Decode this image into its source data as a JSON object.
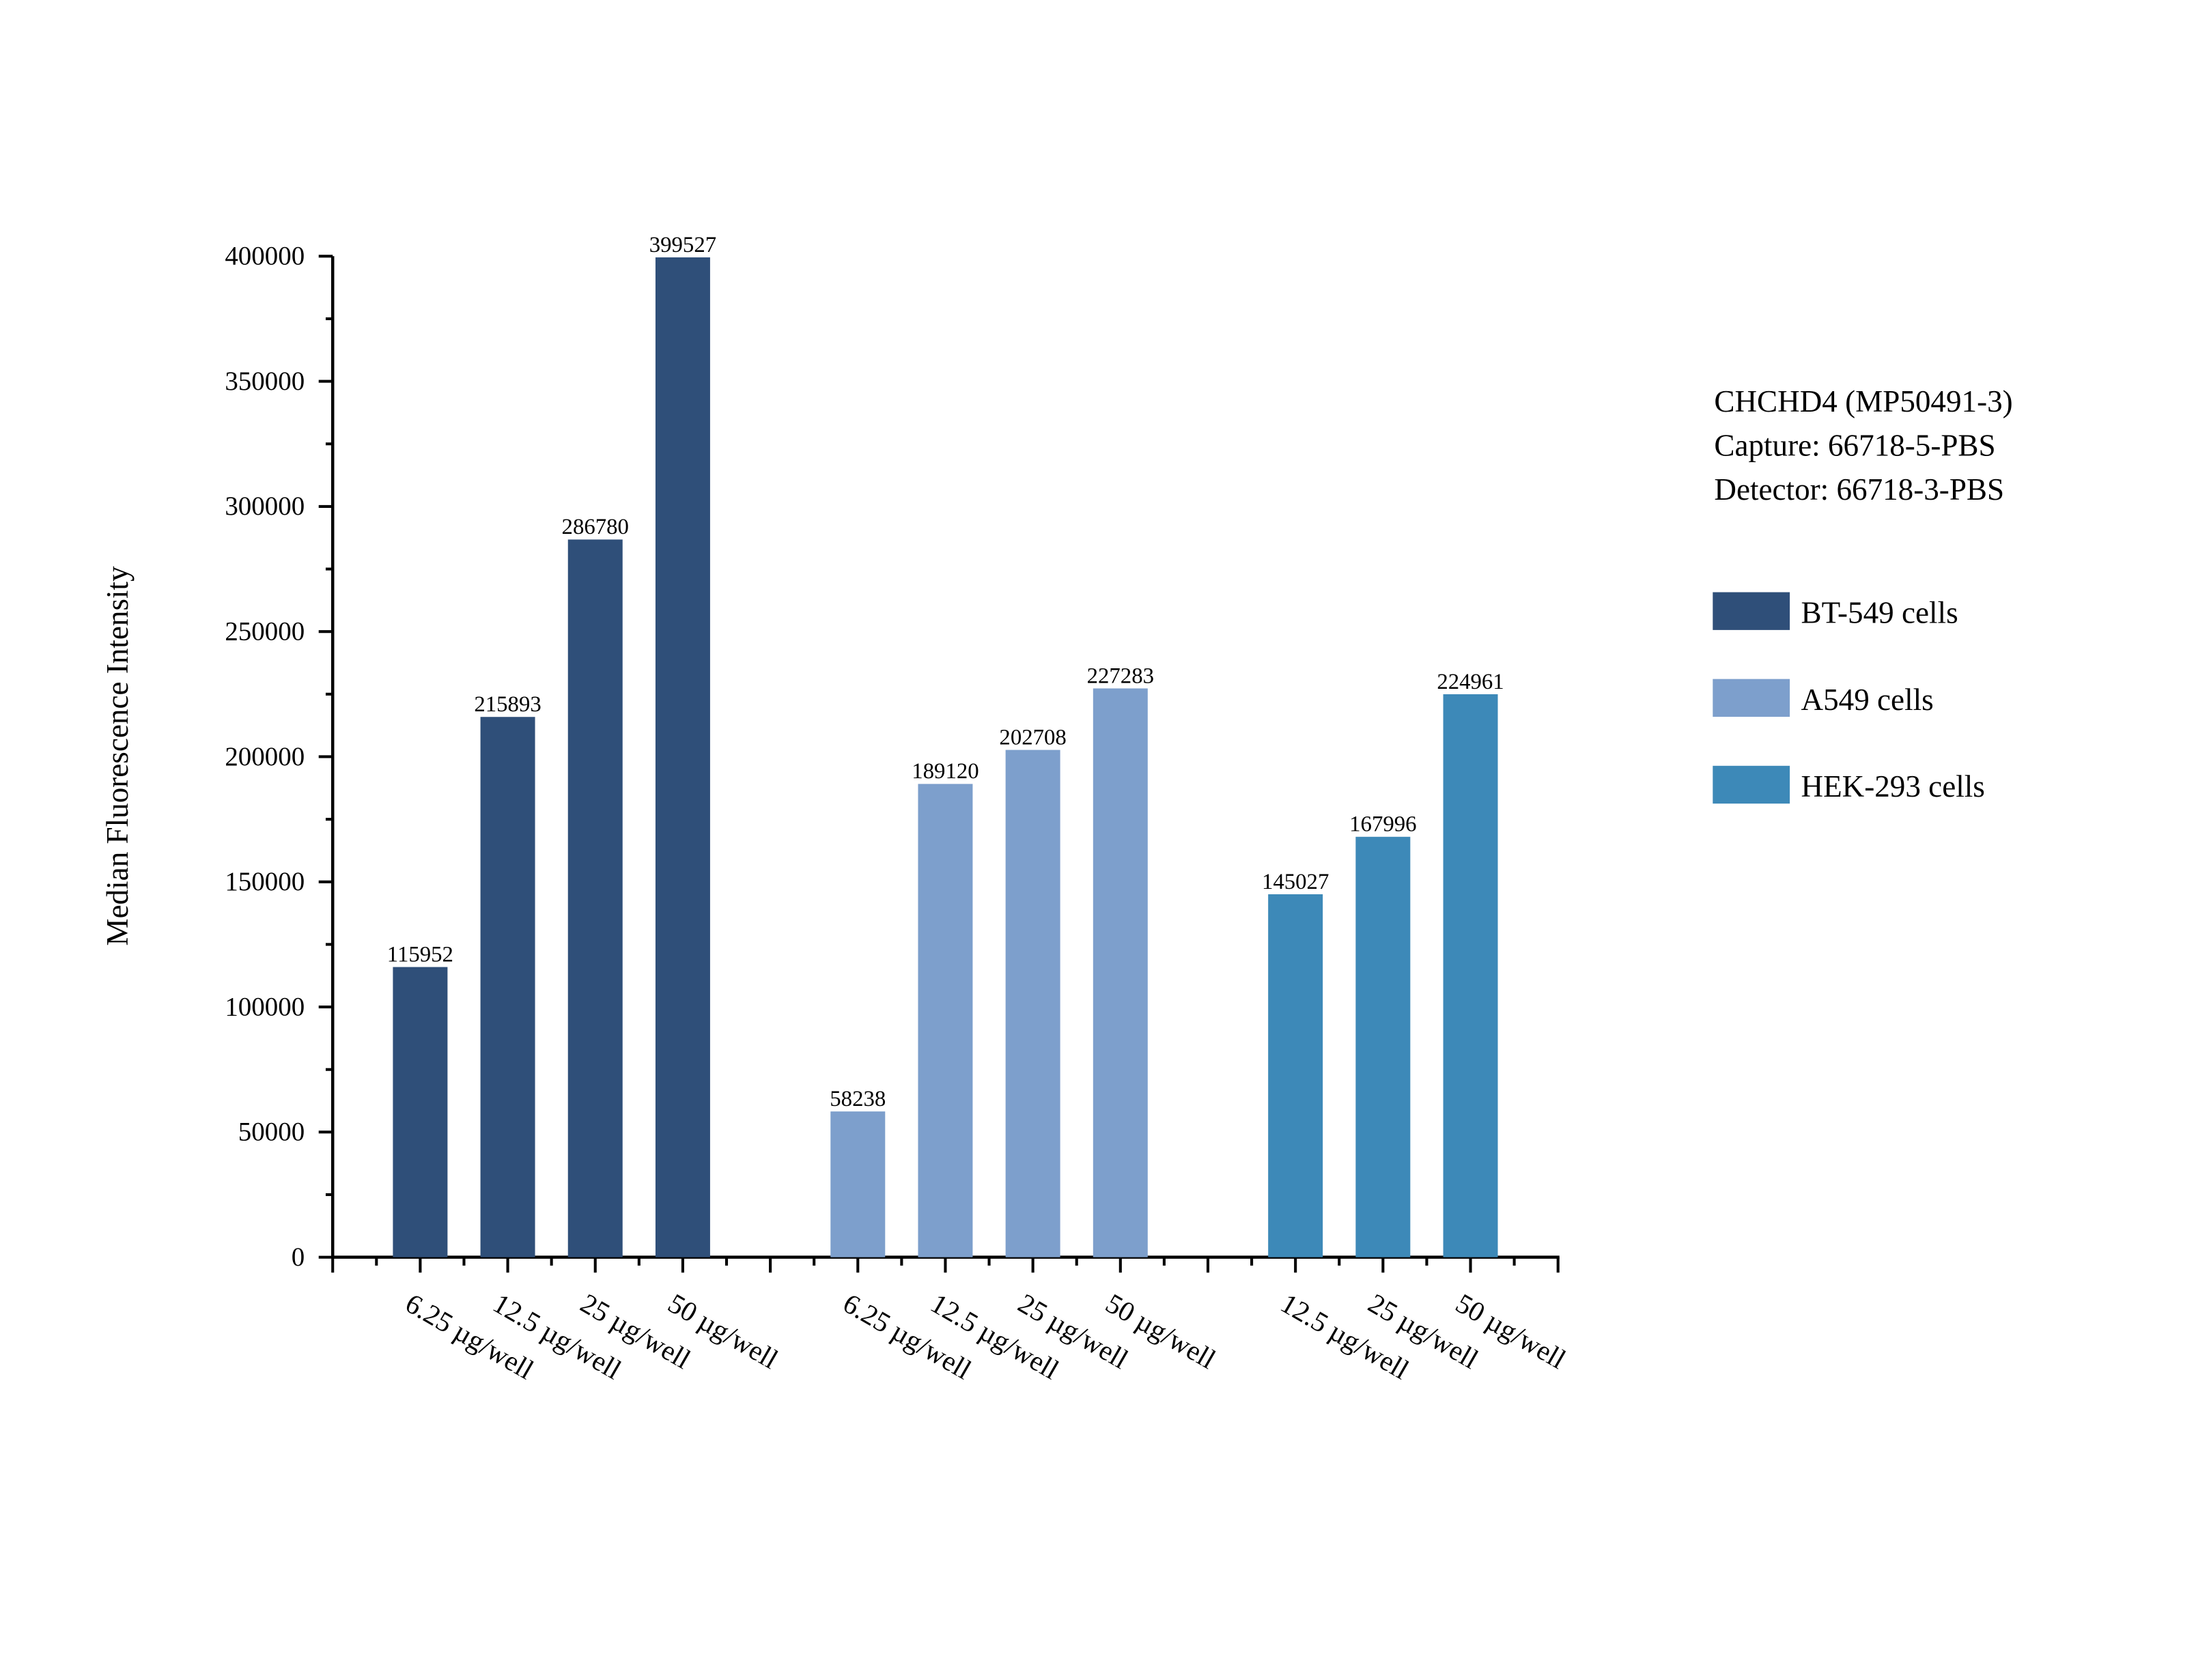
{
  "chart_data": {
    "type": "bar",
    "ylabel": "Median Fluorescence Intensity",
    "xlabel": "",
    "ylim": [
      0,
      400000
    ],
    "yticks": [
      "0",
      "50000",
      "100000",
      "150000",
      "200000",
      "250000",
      "300000",
      "350000",
      "400000"
    ],
    "grid": false,
    "legend_placement": "right",
    "annotation_lines": [
      "CHCHD4 (MP50491-3)",
      "Capture: 66718-5-PBS",
      "Detector: 66718-3-PBS"
    ],
    "series": [
      {
        "name": "BT-549 cells",
        "color": "#2f4f79",
        "categories": [
          "6.25 µg/well",
          "12.5 µg/well",
          "25 µg/well",
          "50 µg/well"
        ],
        "values": [
          115952,
          215893,
          286780,
          399527
        ]
      },
      {
        "name": "A549 cells",
        "color": "#7d9fcc",
        "categories": [
          "6.25 µg/well",
          "12.5 µg/well",
          "25 µg/well",
          "50 µg/well"
        ],
        "values": [
          58238,
          189120,
          202708,
          227283
        ]
      },
      {
        "name": "HEK-293 cells",
        "color": "#3d89b8",
        "categories": [
          "12.5 µg/well",
          "25 µg/well",
          "50 µg/well"
        ],
        "values": [
          145027,
          167996,
          224961
        ]
      }
    ]
  }
}
